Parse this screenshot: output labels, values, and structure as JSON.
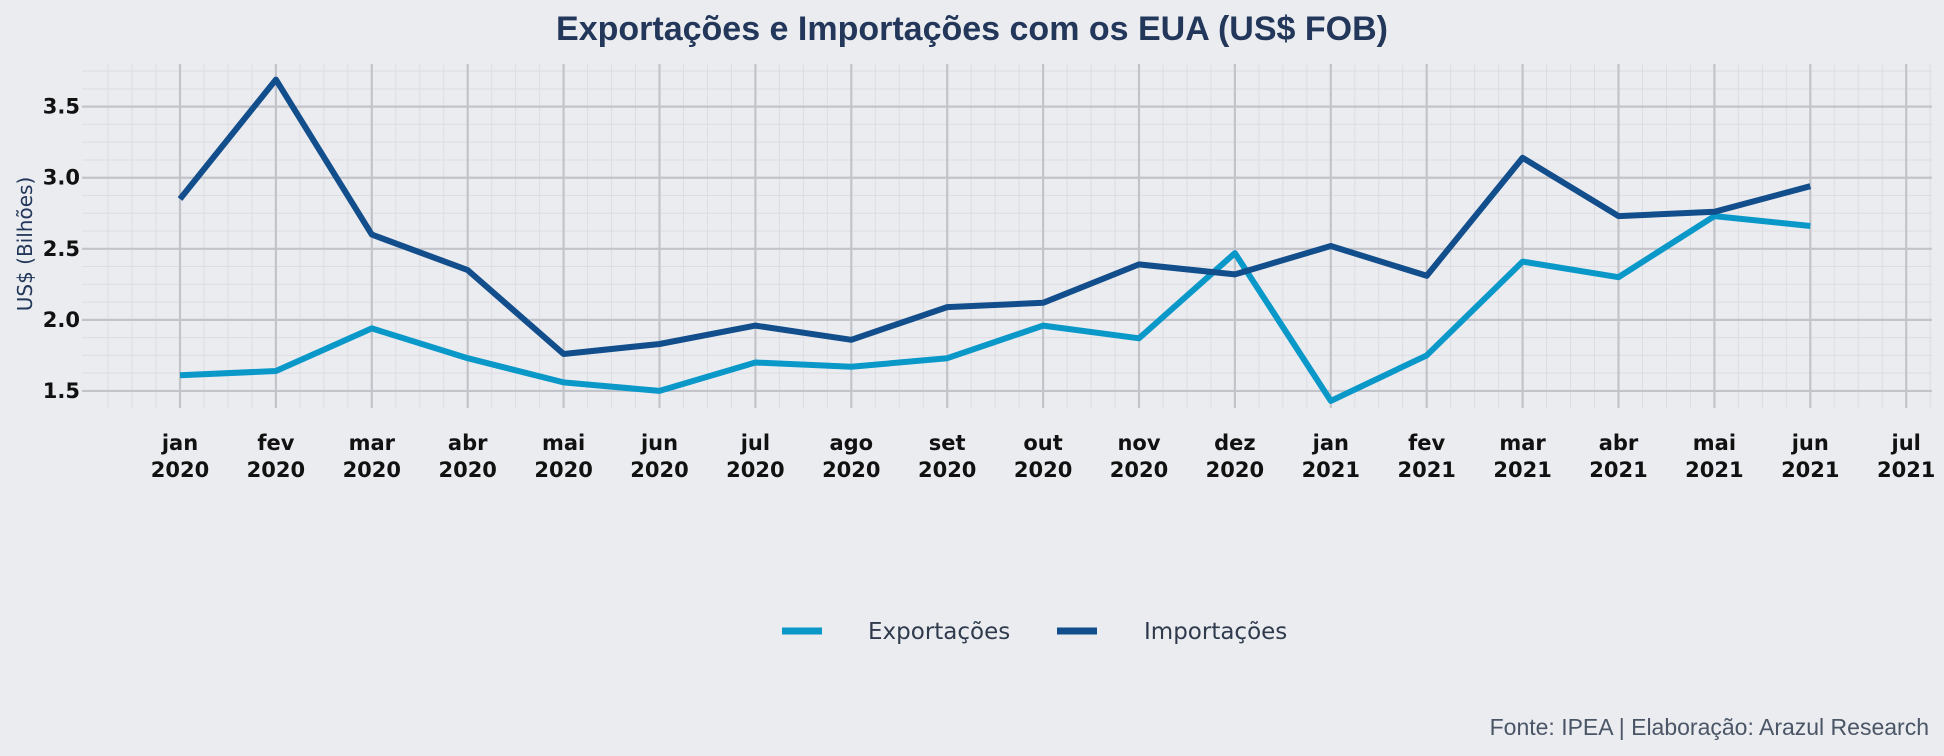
{
  "chart_data": {
    "type": "line",
    "title": "Exportações e Importações com os EUA (US$ FOB)",
    "ylabel": "US$ (Bilhões)",
    "xlabel": "",
    "ylim": [
      1.38,
      3.8
    ],
    "yticks": [
      1.5,
      2.0,
      2.5,
      3.0,
      3.5
    ],
    "ytick_labels": [
      "1.5",
      "2.0",
      "2.5",
      "3.0",
      "3.5"
    ],
    "x_ticks": [
      {
        "month": "jan",
        "year": "2020"
      },
      {
        "month": "fev",
        "year": "2020"
      },
      {
        "month": "mar",
        "year": "2020"
      },
      {
        "month": "abr",
        "year": "2020"
      },
      {
        "month": "mai",
        "year": "2020"
      },
      {
        "month": "jun",
        "year": "2020"
      },
      {
        "month": "jul",
        "year": "2020"
      },
      {
        "month": "ago",
        "year": "2020"
      },
      {
        "month": "set",
        "year": "2020"
      },
      {
        "month": "out",
        "year": "2020"
      },
      {
        "month": "nov",
        "year": "2020"
      },
      {
        "month": "dez",
        "year": "2020"
      },
      {
        "month": "jan",
        "year": "2021"
      },
      {
        "month": "fev",
        "year": "2021"
      },
      {
        "month": "mar",
        "year": "2021"
      },
      {
        "month": "abr",
        "year": "2021"
      },
      {
        "month": "mai",
        "year": "2021"
      },
      {
        "month": "jun",
        "year": "2021"
      },
      {
        "month": "jul",
        "year": "2021"
      }
    ],
    "grid": true,
    "legend_position": "bottom-center",
    "series": [
      {
        "name": "Exportações",
        "color": "#0a98c9",
        "values": [
          1.61,
          1.64,
          1.94,
          1.73,
          1.56,
          1.5,
          1.7,
          1.67,
          1.73,
          1.96,
          1.87,
          2.47,
          1.43,
          1.75,
          2.41,
          2.3,
          2.73,
          2.66
        ]
      },
      {
        "name": "Importações",
        "color": "#124e8b",
        "values": [
          2.85,
          3.69,
          2.6,
          2.35,
          1.76,
          1.83,
          1.96,
          1.86,
          2.09,
          2.12,
          2.39,
          2.32,
          2.52,
          2.31,
          3.14,
          2.73,
          2.76,
          2.94
        ]
      }
    ]
  },
  "source_note": "Fonte: IPEA | Elaboração: Arazul Research"
}
